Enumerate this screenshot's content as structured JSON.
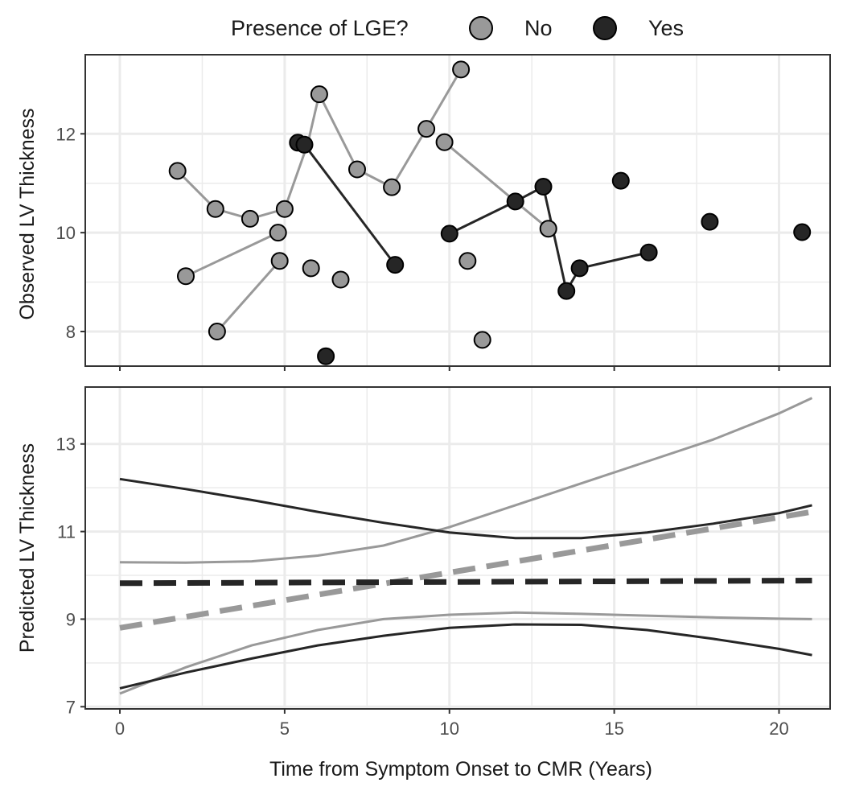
{
  "legend": {
    "title": "Presence of LGE?",
    "items": [
      {
        "label": "No",
        "color": "#999999"
      },
      {
        "label": "Yes",
        "color": "#262626"
      }
    ]
  },
  "colors": {
    "no": "#999999",
    "yes": "#262626",
    "panel_border": "#333333",
    "grid": "#ebebeb"
  },
  "chart_data": [
    {
      "type": "scatter",
      "panel": "top",
      "ylabel": "Observed LV Thickness",
      "xlim": [
        -1.05,
        21.55
      ],
      "ylim": [
        7.3,
        13.6
      ],
      "y_ticks": [
        8,
        10,
        12
      ],
      "series": [
        {
          "name": "No",
          "lines": [
            [
              [
                1.75,
                11.25
              ],
              [
                2.9,
                10.48
              ],
              [
                3.95,
                10.28
              ],
              [
                5.0,
                10.48
              ],
              [
                5.7,
                11.8
              ],
              [
                6.05,
                12.8
              ],
              [
                7.2,
                11.28
              ],
              [
                8.25,
                10.92
              ],
              [
                9.3,
                12.1
              ],
              [
                10.35,
                13.3
              ]
            ],
            [
              [
                2.0,
                9.12
              ],
              [
                4.8,
                10.0
              ]
            ],
            [
              [
                2.95,
                8.0
              ],
              [
                4.85,
                9.43
              ]
            ],
            [
              [
                9.85,
                11.83
              ],
              [
                12.0,
                10.63
              ],
              [
                13.0,
                10.08
              ]
            ]
          ],
          "points": [
            [
              1.75,
              11.25
            ],
            [
              2.9,
              10.48
            ],
            [
              3.95,
              10.28
            ],
            [
              5.0,
              10.48
            ],
            [
              6.05,
              12.8
            ],
            [
              7.2,
              11.28
            ],
            [
              8.25,
              10.92
            ],
            [
              9.3,
              12.1
            ],
            [
              10.35,
              13.3
            ],
            [
              2.0,
              9.12
            ],
            [
              4.8,
              10.0
            ],
            [
              2.95,
              8.0
            ],
            [
              4.85,
              9.43
            ],
            [
              9.85,
              11.83
            ],
            [
              13.0,
              10.08
            ],
            [
              5.8,
              9.28
            ],
            [
              6.7,
              9.05
            ],
            [
              10.55,
              9.43
            ],
            [
              11.0,
              7.83
            ]
          ]
        },
        {
          "name": "Yes",
          "lines": [
            [
              [
                5.4,
                11.82
              ],
              [
                5.6,
                11.78
              ],
              [
                8.35,
                9.35
              ]
            ],
            [
              [
                10.0,
                9.98
              ],
              [
                12.0,
                10.63
              ],
              [
                12.85,
                10.93
              ],
              [
                13.55,
                8.82
              ],
              [
                13.95,
                9.28
              ],
              [
                16.05,
                9.6
              ]
            ]
          ],
          "points": [
            [
              5.4,
              11.82
            ],
            [
              5.6,
              11.78
            ],
            [
              8.35,
              9.35
            ],
            [
              10.0,
              9.98
            ],
            [
              12.0,
              10.63
            ],
            [
              12.85,
              10.93
            ],
            [
              13.55,
              8.82
            ],
            [
              13.95,
              9.28
            ],
            [
              16.05,
              9.6
            ],
            [
              15.2,
              11.05
            ],
            [
              17.9,
              10.22
            ],
            [
              20.7,
              10.01
            ],
            [
              6.25,
              7.5
            ]
          ]
        }
      ]
    },
    {
      "type": "line",
      "panel": "bottom",
      "xlabel": "Time from Symptom Onset to CMR (Years)",
      "ylabel": "Predicted LV Thickness",
      "xlim": [
        -1.05,
        21.55
      ],
      "ylim": [
        6.95,
        14.3
      ],
      "x_ticks": [
        0,
        5,
        10,
        15,
        20
      ],
      "y_ticks": [
        7,
        9,
        11,
        13
      ],
      "series": [
        {
          "name": "No",
          "role": "estimate",
          "dashed": true,
          "x": [
            0,
            21
          ],
          "y": [
            8.8,
            11.45
          ]
        },
        {
          "name": "No",
          "role": "upper",
          "x": [
            0,
            2,
            4,
            6,
            8,
            10,
            12,
            14,
            16,
            18,
            20,
            21
          ],
          "y": [
            10.3,
            10.29,
            10.32,
            10.45,
            10.68,
            11.1,
            11.6,
            12.1,
            12.6,
            13.1,
            13.7,
            14.05
          ]
        },
        {
          "name": "No",
          "role": "lower",
          "x": [
            0,
            2,
            4,
            6,
            8,
            10,
            12,
            14,
            16,
            18,
            20,
            21
          ],
          "y": [
            7.3,
            7.9,
            8.4,
            8.75,
            9.0,
            9.1,
            9.15,
            9.12,
            9.08,
            9.04,
            9.01,
            9.0
          ]
        },
        {
          "name": "Yes",
          "role": "estimate",
          "dashed": true,
          "x": [
            0,
            21
          ],
          "y": [
            9.82,
            9.88
          ]
        },
        {
          "name": "Yes",
          "role": "upper",
          "x": [
            0,
            2,
            4,
            6,
            8,
            10,
            12,
            14,
            16,
            18,
            20,
            21
          ],
          "y": [
            12.2,
            11.97,
            11.72,
            11.45,
            11.2,
            10.98,
            10.85,
            10.85,
            10.98,
            11.18,
            11.42,
            11.6
          ]
        },
        {
          "name": "Yes",
          "role": "lower",
          "x": [
            0,
            2,
            4,
            6,
            8,
            10,
            12,
            14,
            16,
            18,
            20,
            21
          ],
          "y": [
            7.42,
            7.78,
            8.1,
            8.4,
            8.62,
            8.8,
            8.88,
            8.87,
            8.75,
            8.55,
            8.32,
            8.18
          ]
        }
      ]
    }
  ]
}
